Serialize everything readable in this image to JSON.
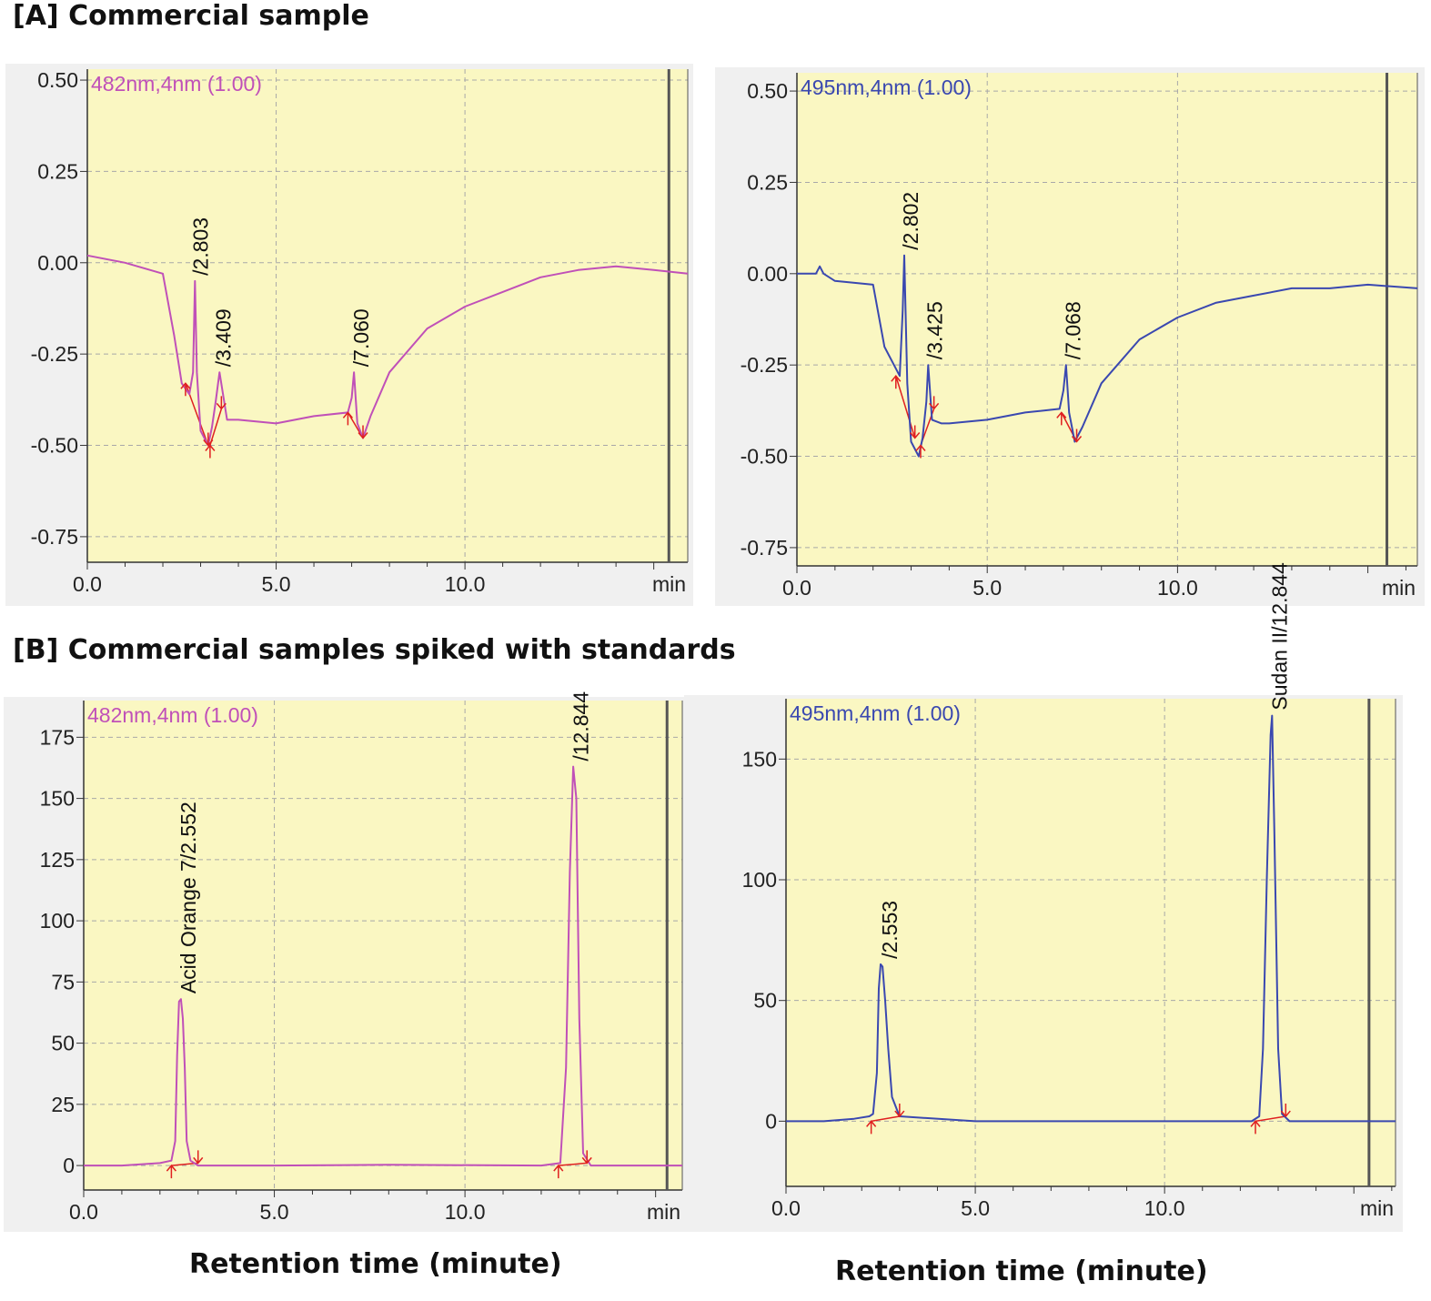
{
  "section_a_title": "[A] Commercial sample",
  "section_b_title": "[B] Commercial samples spiked with standards",
  "bottom_left_xcaption": "Retention time (minute)",
  "bottom_right_xcaption": "Retention time (minute)",
  "colors": {
    "magenta": "#c050b8",
    "blue": "#3a48b0",
    "marker": "#e02020",
    "plot_bg": "#faf7c2",
    "frame_bg": "#f0f0f0"
  },
  "chart_data": [
    {
      "id": "A-482",
      "type": "line",
      "channel_label": "482nm,4nm (1.00)",
      "x_unit": "min",
      "xlim": [
        0,
        15.9
      ],
      "ylim": [
        -0.82,
        0.53
      ],
      "xticks": [
        0,
        5,
        10
      ],
      "xtick_labels": [
        "0.0",
        "5.0",
        "10.0"
      ],
      "yticks": [
        0.5,
        0.25,
        0,
        -0.25,
        -0.5,
        -0.75
      ],
      "ytick_labels": [
        "0.50",
        "0.25",
        "0.00",
        "-0.25",
        "-0.50",
        "-0.75"
      ],
      "end_marker": 15.4,
      "color": "magenta",
      "series": [
        {
          "x": [
            0,
            1,
            2,
            2.3,
            2.5,
            2.7,
            2.8,
            2.85,
            2.9,
            3.0,
            3.2,
            3.3,
            3.4,
            3.5,
            3.7,
            4,
            5,
            6,
            6.9,
            7.0,
            7.06,
            7.15,
            7.3,
            7.5,
            8,
            9,
            10,
            11,
            12,
            13,
            14,
            15,
            15.9
          ],
          "y": [
            0.02,
            0.0,
            -0.03,
            -0.2,
            -0.33,
            -0.36,
            -0.3,
            -0.05,
            -0.3,
            -0.46,
            -0.5,
            -0.45,
            -0.38,
            -0.3,
            -0.43,
            -0.43,
            -0.44,
            -0.42,
            -0.41,
            -0.37,
            -0.3,
            -0.44,
            -0.48,
            -0.42,
            -0.3,
            -0.18,
            -0.12,
            -0.08,
            -0.04,
            -0.02,
            -0.01,
            -0.02,
            -0.03
          ]
        }
      ],
      "peaks": [
        {
          "x": 2.803,
          "y": -0.05,
          "label": "/2.803"
        },
        {
          "x": 3.409,
          "y": -0.3,
          "label": "/3.409"
        },
        {
          "x": 7.06,
          "y": -0.3,
          "label": "/7.060"
        }
      ],
      "markers": [
        {
          "x": 2.6,
          "y": -0.33,
          "dir": "up"
        },
        {
          "x": 3.2,
          "y": -0.5,
          "dir": "down"
        },
        {
          "x": 3.25,
          "y": -0.5,
          "dir": "up"
        },
        {
          "x": 3.55,
          "y": -0.4,
          "dir": "down"
        },
        {
          "x": 6.9,
          "y": -0.41,
          "dir": "up"
        },
        {
          "x": 7.3,
          "y": -0.48,
          "dir": "down"
        }
      ]
    },
    {
      "id": "A-495",
      "type": "line",
      "channel_label": "495nm,4nm (1.00)",
      "x_unit": "min",
      "xlim": [
        0,
        16.3
      ],
      "ylim": [
        -0.8,
        0.55
      ],
      "xticks": [
        0,
        5,
        10
      ],
      "xtick_labels": [
        "0.0",
        "5.0",
        "10.0"
      ],
      "yticks": [
        0.5,
        0.25,
        0,
        -0.25,
        -0.5,
        -0.75
      ],
      "ytick_labels": [
        "0.50",
        "0.25",
        "0.00",
        "-0.25",
        "-0.50",
        "-0.75"
      ],
      "end_marker": 15.5,
      "color": "blue",
      "series": [
        {
          "x": [
            0,
            0.5,
            0.6,
            0.7,
            1,
            2,
            2.3,
            2.6,
            2.7,
            2.78,
            2.82,
            2.9,
            3.0,
            3.2,
            3.3,
            3.4,
            3.45,
            3.55,
            3.8,
            4,
            5,
            6,
            6.9,
            7.0,
            7.07,
            7.15,
            7.3,
            7.5,
            8,
            9,
            10,
            11,
            12,
            13,
            14,
            15,
            16.3
          ],
          "y": [
            0.0,
            0.0,
            0.02,
            0.0,
            -0.02,
            -0.03,
            -0.2,
            -0.26,
            -0.28,
            -0.1,
            0.05,
            -0.3,
            -0.46,
            -0.5,
            -0.45,
            -0.35,
            -0.25,
            -0.4,
            -0.41,
            -0.41,
            -0.4,
            -0.38,
            -0.37,
            -0.32,
            -0.25,
            -0.38,
            -0.46,
            -0.42,
            -0.3,
            -0.18,
            -0.12,
            -0.08,
            -0.06,
            -0.04,
            -0.04,
            -0.03,
            -0.04
          ]
        }
      ],
      "peaks": [
        {
          "x": 2.802,
          "y": 0.05,
          "label": "/2.802"
        },
        {
          "x": 3.425,
          "y": -0.25,
          "label": "/3.425"
        },
        {
          "x": 7.068,
          "y": -0.25,
          "label": "/7.068"
        }
      ],
      "markers": [
        {
          "x": 2.6,
          "y": -0.28,
          "dir": "up"
        },
        {
          "x": 3.1,
          "y": -0.45,
          "dir": "down"
        },
        {
          "x": 3.25,
          "y": -0.47,
          "dir": "up"
        },
        {
          "x": 3.6,
          "y": -0.37,
          "dir": "down"
        },
        {
          "x": 6.95,
          "y": -0.38,
          "dir": "up"
        },
        {
          "x": 7.35,
          "y": -0.46,
          "dir": "down"
        }
      ]
    },
    {
      "id": "B-482",
      "type": "line",
      "channel_label": "482nm,4nm (1.00)",
      "x_unit": "min",
      "xlim": [
        0,
        15.7
      ],
      "ylim": [
        -10,
        190
      ],
      "xticks": [
        0,
        5,
        10
      ],
      "xtick_labels": [
        "0.0",
        "5.0",
        "10.0"
      ],
      "yticks": [
        175,
        150,
        125,
        100,
        75,
        50,
        25,
        0
      ],
      "ytick_labels": [
        "175",
        "150",
        "125",
        "100",
        "75",
        "50",
        "25",
        "0"
      ],
      "end_marker": 15.3,
      "color": "magenta",
      "series": [
        {
          "x": [
            0,
            1,
            2,
            2.3,
            2.4,
            2.45,
            2.5,
            2.55,
            2.6,
            2.65,
            2.7,
            2.8,
            3.0,
            5,
            8,
            12,
            12.5,
            12.65,
            12.75,
            12.84,
            12.92,
            13.0,
            13.1,
            13.3,
            15.7
          ],
          "y": [
            0,
            0,
            1,
            2,
            10,
            45,
            67,
            68,
            60,
            40,
            10,
            2,
            0,
            0,
            0.3,
            0,
            1,
            40,
            120,
            163,
            150,
            60,
            5,
            0,
            0
          ]
        }
      ],
      "peaks": [
        {
          "x": 2.552,
          "y": 68,
          "label": "Acid Orange 7/2.552"
        },
        {
          "x": 12.844,
          "y": 163,
          "label": "/12.844"
        }
      ],
      "markers": [
        {
          "x": 2.3,
          "y": 0,
          "dir": "up"
        },
        {
          "x": 3.0,
          "y": 1,
          "dir": "down"
        },
        {
          "x": 12.45,
          "y": 0,
          "dir": "up"
        },
        {
          "x": 13.2,
          "y": 1,
          "dir": "down"
        }
      ]
    },
    {
      "id": "B-495",
      "type": "line",
      "channel_label": "495nm,4nm (1.00)",
      "x_unit": "min",
      "xlim": [
        0,
        16.1
      ],
      "ylim": [
        -27,
        175
      ],
      "xticks": [
        0,
        5,
        10
      ],
      "xtick_labels": [
        "0.0",
        "5.0",
        "10.0"
      ],
      "yticks": [
        150,
        100,
        50,
        0
      ],
      "ytick_labels": [
        "150",
        "100",
        "50",
        "0"
      ],
      "end_marker": 15.4,
      "color": "blue",
      "series": [
        {
          "x": [
            0,
            1,
            1.8,
            2.2,
            2.3,
            2.4,
            2.45,
            2.5,
            2.55,
            2.62,
            2.7,
            2.8,
            3.0,
            5,
            10,
            12.3,
            12.5,
            12.6,
            12.7,
            12.8,
            12.84,
            12.9,
            13.0,
            13.1,
            13.3,
            16.1
          ],
          "y": [
            0,
            0,
            1,
            2,
            3,
            20,
            55,
            65,
            64,
            50,
            30,
            10,
            2,
            0,
            0,
            0,
            2,
            30,
            100,
            160,
            168,
            120,
            30,
            3,
            0,
            0
          ]
        }
      ],
      "peaks": [
        {
          "x": 2.553,
          "y": 65,
          "label": "/2.553"
        },
        {
          "x": 12.844,
          "y": 168,
          "label": "Sudan II/12.844"
        }
      ],
      "markers": [
        {
          "x": 2.25,
          "y": 0,
          "dir": "up"
        },
        {
          "x": 3.0,
          "y": 2,
          "dir": "down"
        },
        {
          "x": 12.4,
          "y": 0,
          "dir": "up"
        },
        {
          "x": 13.2,
          "y": 2,
          "dir": "down"
        }
      ]
    }
  ]
}
